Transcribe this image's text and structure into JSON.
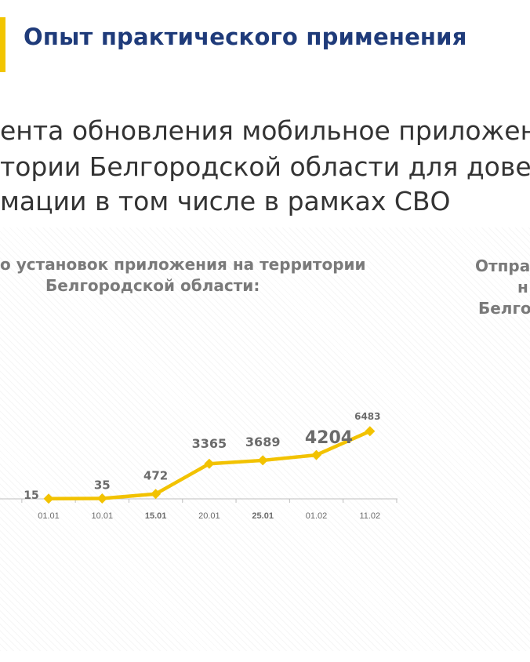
{
  "header": {
    "title": "Опыт практического применения"
  },
  "subtitle": {
    "lines": [
      "ента обновления мобильное приложен",
      "тории Белгородской области для довед",
      "мации в том числе в рамках СВО"
    ]
  },
  "right_panel": {
    "title_lines": [
      "Отпра",
      "н",
      "Белго"
    ]
  },
  "colors": {
    "title": "#1f3b7a",
    "accent": "#f2c500",
    "line": "#f2c200",
    "axis_text": "#6b6b6b",
    "label_text": "#6b6b6b"
  },
  "chart_data": {
    "type": "line",
    "title_lines": [
      "о установок приложения на территории",
      "Белгородской области:"
    ],
    "categories": [
      "01.01",
      "10.01",
      "15.01",
      "20.01",
      "25.01",
      "01.02",
      "11.02"
    ],
    "bold_categories": [
      "15.01",
      "25.01"
    ],
    "series": [
      {
        "values": [
          15,
          35,
          472,
          3365,
          3689,
          4204,
          6483
        ],
        "labels": [
          "15",
          "35",
          "472",
          "3365",
          "3689",
          "4204",
          "6483"
        ]
      }
    ],
    "grid": false,
    "legend": "none"
  }
}
